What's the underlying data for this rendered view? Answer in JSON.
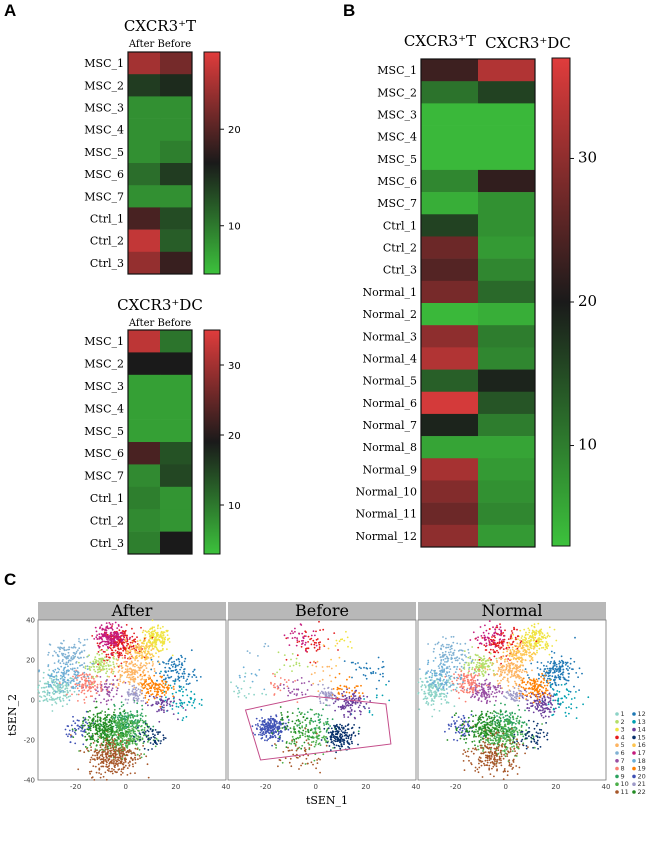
{
  "figure": {
    "panel_labels": [
      "A",
      "B",
      "C"
    ]
  },
  "chart_data": [
    {
      "id": "A1",
      "type": "heatmap",
      "title": "CXCR3⁺T",
      "subtitle": "After Before",
      "columns": [
        "After",
        "Before"
      ],
      "rows": [
        "MSC_1",
        "MSC_2",
        "MSC_3",
        "MSC_4",
        "MSC_5",
        "MSC_6",
        "MSC_7",
        "Ctrl_1",
        "Ctrl_2",
        "Ctrl_3"
      ],
      "values": [
        [
          24,
          21
        ],
        [
          13,
          14
        ],
        [
          8,
          8
        ],
        [
          8,
          8
        ],
        [
          8,
          9
        ],
        [
          10,
          13
        ],
        [
          8,
          8
        ],
        [
          18,
          12
        ],
        [
          26,
          11
        ],
        [
          23,
          17
        ]
      ],
      "colorbar": {
        "min": 5,
        "mid": 15,
        "max": 28,
        "ticks": [
          10,
          20
        ]
      },
      "colors": {
        "low": "#3cc23c",
        "mid": "#1a1a1a",
        "high": "#e03c3c"
      }
    },
    {
      "id": "A2",
      "type": "heatmap",
      "title": "CXCR3⁺DC",
      "subtitle": "After Before",
      "columns": [
        "After",
        "Before"
      ],
      "rows": [
        "MSC_1",
        "MSC_2",
        "MSC_3",
        "MSC_4",
        "MSC_5",
        "MSC_6",
        "MSC_7",
        "Ctrl_1",
        "Ctrl_2",
        "Ctrl_3"
      ],
      "values": [
        [
          32,
          10
        ],
        [
          18,
          18
        ],
        [
          6,
          6
        ],
        [
          6,
          6
        ],
        [
          6,
          6
        ],
        [
          22,
          13
        ],
        [
          8,
          14
        ],
        [
          9,
          7
        ],
        [
          8,
          7
        ],
        [
          9,
          18
        ]
      ],
      "colorbar": {
        "min": 3,
        "mid": 18,
        "max": 35,
        "ticks": [
          10,
          20,
          30
        ]
      },
      "colors": {
        "low": "#3cc23c",
        "mid": "#1a1a1a",
        "high": "#e03c3c"
      }
    },
    {
      "id": "B",
      "type": "heatmap",
      "titles": [
        "CXCR3⁺T",
        "CXCR3⁺DC"
      ],
      "columns": [
        "CXCR3+T",
        "CXCR3+DC"
      ],
      "rows": [
        "MSC_1",
        "MSC_2",
        "MSC_3",
        "MSC_4",
        "MSC_5",
        "MSC_6",
        "MSC_7",
        "Ctrl_1",
        "Ctrl_2",
        "Ctrl_3",
        "Normal_1",
        "Normal_2",
        "Normal_3",
        "Normal_4",
        "Normal_5",
        "Normal_6",
        "Normal_7",
        "Normal_8",
        "Normal_9",
        "Normal_10",
        "Normal_11",
        "Normal_12"
      ],
      "values": [
        [
          23,
          33
        ],
        [
          11,
          16
        ],
        [
          4,
          4
        ],
        [
          4,
          4
        ],
        [
          4,
          4
        ],
        [
          9,
          22
        ],
        [
          5,
          8
        ],
        [
          16,
          8
        ],
        [
          27,
          7
        ],
        [
          25,
          9
        ],
        [
          28,
          12
        ],
        [
          4,
          5
        ],
        [
          30,
          10
        ],
        [
          33,
          9
        ],
        [
          13,
          19
        ],
        [
          36,
          14
        ],
        [
          19,
          10
        ],
        [
          6,
          6
        ],
        [
          32,
          7
        ],
        [
          29,
          8
        ],
        [
          27,
          9
        ],
        [
          30,
          7
        ]
      ],
      "colorbar": {
        "min": 3,
        "mid": 20,
        "max": 37,
        "ticks": [
          10,
          20,
          30
        ]
      },
      "colors": {
        "low": "#3cc23c",
        "mid": "#1a1a1a",
        "high": "#e03c3c"
      }
    },
    {
      "id": "C",
      "type": "scatter",
      "facets": [
        "After",
        "Before",
        "Normal"
      ],
      "xlabel": "tSEN_1",
      "ylabel": "tSEN_2",
      "xlim": [
        -35,
        40
      ],
      "ylim": [
        -40,
        40
      ],
      "xticks": [
        -20,
        0,
        20,
        40
      ],
      "yticks": [
        -40,
        -20,
        0,
        20,
        40
      ],
      "legend": [
        "1",
        "2",
        "3",
        "4",
        "5",
        "6",
        "7",
        "8",
        "9",
        "10",
        "11",
        "12",
        "13",
        "14",
        "15",
        "16",
        "17",
        "18",
        "19",
        "20",
        "21",
        "22"
      ],
      "legend_position": "right",
      "cluster_colors": [
        "#8dd3c7",
        "#b3de69",
        "#f0e442",
        "#e41a1c",
        "#fdb462",
        "#80b1d3",
        "#984ea3",
        "#fb8072",
        "#2ca25f",
        "#4daf4a",
        "#a65628",
        "#1f78b4",
        "#00a0b0",
        "#6a3d9a",
        "#08306b",
        "#fec44f",
        "#c51b7d",
        "#6baed6",
        "#ff7f00",
        "#3f51b5",
        "#9e9ac8",
        "#228b22"
      ],
      "clusters": [
        {
          "id": 1,
          "x": -28,
          "y": 5,
          "sd": 4
        },
        {
          "id": 2,
          "x": -10,
          "y": 18,
          "sd": 3
        },
        {
          "id": 3,
          "x": 12,
          "y": 30,
          "sd": 3
        },
        {
          "id": 4,
          "x": -2,
          "y": 28,
          "sd": 4
        },
        {
          "id": 5,
          "x": 2,
          "y": 14,
          "sd": 4
        },
        {
          "id": 6,
          "x": -22,
          "y": 22,
          "sd": 4
        },
        {
          "id": 7,
          "x": -8,
          "y": 5,
          "sd": 3
        },
        {
          "id": 8,
          "x": -15,
          "y": 8,
          "sd": 3
        },
        {
          "id": 9,
          "x": 0,
          "y": -12,
          "sd": 4
        },
        {
          "id": 10,
          "x": -2,
          "y": -18,
          "sd": 5
        },
        {
          "id": 11,
          "x": -5,
          "y": -28,
          "sd": 5
        },
        {
          "id": 12,
          "x": 20,
          "y": 14,
          "sd": 4
        },
        {
          "id": 13,
          "x": 22,
          "y": 0,
          "sd": 4
        },
        {
          "id": 14,
          "x": 14,
          "y": -2,
          "sd": 3
        },
        {
          "id": 15,
          "x": 10,
          "y": -18,
          "sd": 3
        },
        {
          "id": 16,
          "x": 6,
          "y": 24,
          "sd": 3
        },
        {
          "id": 17,
          "x": -6,
          "y": 32,
          "sd": 3
        },
        {
          "id": 18,
          "x": -25,
          "y": 12,
          "sd": 4
        },
        {
          "id": 19,
          "x": 12,
          "y": 6,
          "sd": 3
        },
        {
          "id": 20,
          "x": -18,
          "y": -14,
          "sd": 3
        },
        {
          "id": 21,
          "x": 4,
          "y": 2,
          "sd": 2
        },
        {
          "id": 22,
          "x": -10,
          "y": -14,
          "sd": 4
        }
      ],
      "facet_weights": {
        "After": [
          3,
          2,
          3,
          4,
          3,
          2,
          1,
          2,
          4,
          6,
          6,
          2,
          1,
          1,
          1,
          2,
          3,
          2,
          2,
          1,
          1,
          4
        ],
        "Before": [
          0.3,
          0.3,
          0.2,
          0.8,
          0.3,
          0.1,
          0.5,
          0.4,
          1,
          2,
          1,
          0.6,
          0.2,
          2,
          3,
          0.1,
          0.6,
          0.2,
          0.6,
          4,
          1,
          1
        ],
        "Normal": [
          3,
          2,
          3,
          2,
          3,
          2,
          2,
          2,
          3,
          4,
          4,
          3,
          1,
          2,
          1,
          2,
          1,
          2,
          2,
          1,
          1,
          3
        ]
      }
    }
  ]
}
